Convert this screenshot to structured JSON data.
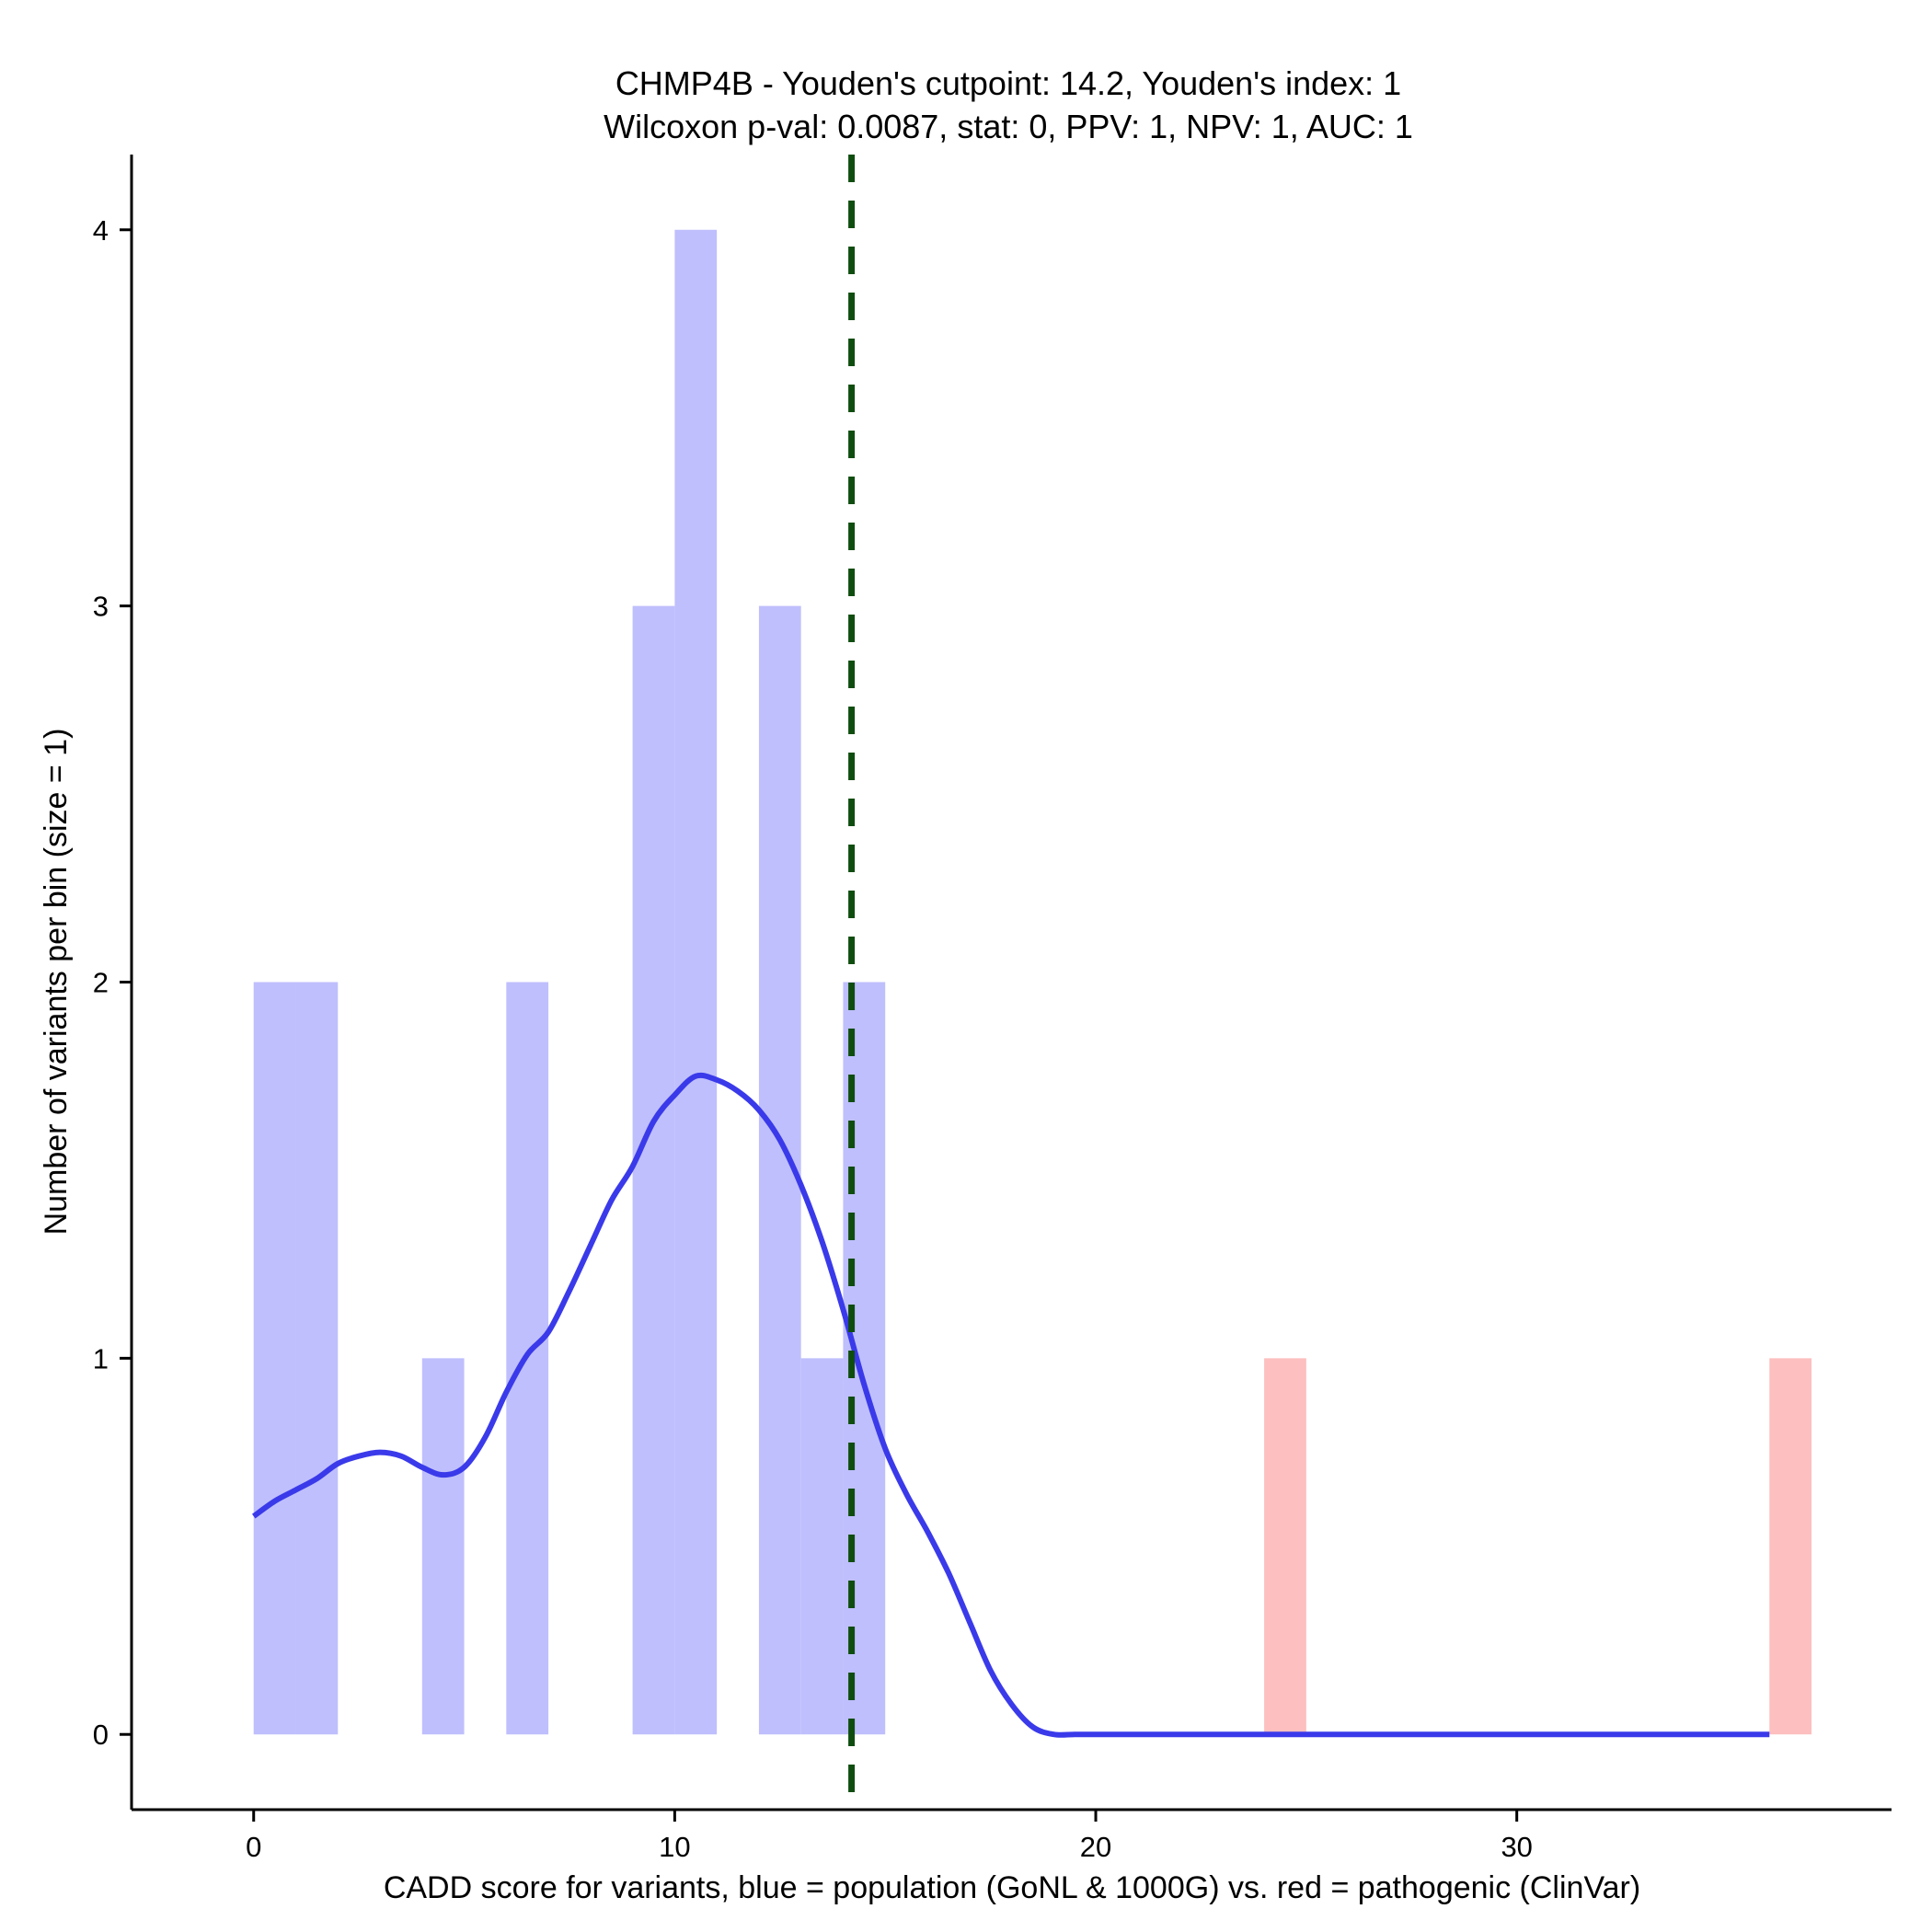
{
  "chart_data": {
    "type": "bar",
    "title": "CHMP4B - Youden's cutpoint: 14.2, Youden's index: 1",
    "subtitle": "Wilcoxon p-val: 0.0087, stat: 0, PPV: 1, NPV: 1, AUC: 1",
    "xlabel": "CADD score for variants, blue = population (GoNL & 1000G) vs. red = pathogenic (ClinVar)",
    "ylabel": "Number of variants per bin (size = 1)",
    "xlim": [
      -2.9,
      38.9
    ],
    "ylim": [
      -0.2,
      4.2
    ],
    "x_ticks": [
      0,
      10,
      20,
      30
    ],
    "y_ticks": [
      0,
      1,
      2,
      3,
      4
    ],
    "bin_size": 1,
    "grid": false,
    "colors": {
      "population": "#bfbffd",
      "pathogenic": "#fdbfbf",
      "density": "#3a3aea",
      "cutpoint": "#0f4d0f",
      "axis": "#000000"
    },
    "cutpoint": 14.2,
    "series": [
      {
        "name": "population",
        "bins": [
          {
            "x0": 0,
            "x1": 1,
            "count": 2
          },
          {
            "x0": 1,
            "x1": 2,
            "count": 2
          },
          {
            "x0": 4,
            "x1": 5,
            "count": 1
          },
          {
            "x0": 6,
            "x1": 7,
            "count": 2
          },
          {
            "x0": 9,
            "x1": 10,
            "count": 3
          },
          {
            "x0": 10,
            "x1": 11,
            "count": 4
          },
          {
            "x0": 12,
            "x1": 13,
            "count": 3
          },
          {
            "x0": 13,
            "x1": 14,
            "count": 1
          },
          {
            "x0": 14,
            "x1": 15,
            "count": 2
          }
        ]
      },
      {
        "name": "pathogenic",
        "bins": [
          {
            "x0": 24,
            "x1": 25,
            "count": 1
          },
          {
            "x0": 36,
            "x1": 37,
            "count": 1
          }
        ]
      }
    ],
    "density": {
      "name": "population density",
      "x": [
        0,
        0.5,
        1,
        1.5,
        2,
        2.5,
        3,
        3.5,
        4,
        4.5,
        5,
        5.5,
        6,
        6.5,
        7,
        7.5,
        8,
        8.5,
        9,
        9.5,
        10,
        10.5,
        11,
        11.5,
        12,
        12.5,
        13,
        13.5,
        14,
        14.5,
        15,
        15.5,
        16,
        16.5,
        17,
        17.5,
        18,
        18.5,
        19,
        19.5,
        20,
        22,
        24,
        26,
        28,
        30,
        32,
        34,
        36
      ],
      "y": [
        0.58,
        0.62,
        0.65,
        0.68,
        0.72,
        0.74,
        0.75,
        0.74,
        0.71,
        0.69,
        0.71,
        0.79,
        0.91,
        1.01,
        1.07,
        1.18,
        1.3,
        1.42,
        1.51,
        1.63,
        1.7,
        1.75,
        1.74,
        1.71,
        1.66,
        1.58,
        1.46,
        1.31,
        1.13,
        0.93,
        0.76,
        0.64,
        0.54,
        0.43,
        0.3,
        0.17,
        0.08,
        0.02,
        0.0,
        0.0,
        0.0,
        0.0,
        0.0,
        0.0,
        0.0,
        0.0,
        0.0,
        0.0,
        0.0
      ]
    }
  }
}
